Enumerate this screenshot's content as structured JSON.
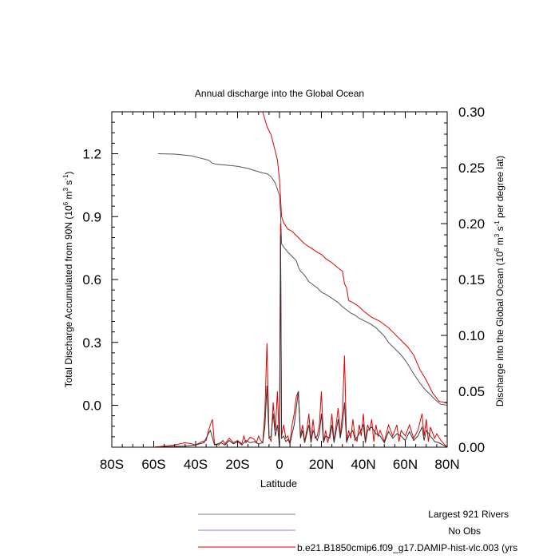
{
  "chart_data": {
    "type": "line",
    "title": "Annual discharge into the Global Ocean",
    "xlabel": "Latitude",
    "ylabel_left": {
      "main": "Total Discharge Accumulated from 90N (10",
      "sup1": "6",
      "mid1": " m",
      "sup2": "3",
      "mid2": " s",
      "sup3": "-1",
      "end": ")"
    },
    "ylabel_right": {
      "main": "Discharge into the Global Ocean (10",
      "sup1": "6",
      "mid1": " m",
      "sup2": "3",
      "mid2": " s",
      "sup3": "-1",
      "end": " per degree lat)"
    },
    "xlim": [
      -80,
      80
    ],
    "ylim_left": [
      -0.2,
      1.4
    ],
    "ylim_right": [
      0.0,
      0.3
    ],
    "x_ticks": [
      {
        "value": -80,
        "label": "80S"
      },
      {
        "value": -60,
        "label": "60S"
      },
      {
        "value": -40,
        "label": "40S"
      },
      {
        "value": -20,
        "label": "20S"
      },
      {
        "value": 0,
        "label": "0"
      },
      {
        "value": 20,
        "label": "20N"
      },
      {
        "value": 40,
        "label": "40N"
      },
      {
        "value": 60,
        "label": "60N"
      },
      {
        "value": 80,
        "label": "80N"
      }
    ],
    "y_ticks_left": [
      {
        "value": 0.0,
        "label": "0.0"
      },
      {
        "value": 0.3,
        "label": "0.3"
      },
      {
        "value": 0.6,
        "label": "0.6"
      },
      {
        "value": 0.9,
        "label": "0.9"
      },
      {
        "value": 1.2,
        "label": "1.2"
      }
    ],
    "y_ticks_right": [
      {
        "value": 0.0,
        "label": "0.00"
      },
      {
        "value": 0.05,
        "label": "0.05"
      },
      {
        "value": 0.1,
        "label": "0.10"
      },
      {
        "value": 0.15,
        "label": "0.15"
      },
      {
        "value": 0.2,
        "label": "0.20"
      },
      {
        "value": 0.25,
        "label": "0.25"
      },
      {
        "value": 0.3,
        "label": "0.30"
      }
    ],
    "legend": [
      {
        "label": "Largest 921 Rivers",
        "color": "#808080"
      },
      {
        "label": "No Obs",
        "color": "#7f7fff"
      },
      {
        "label": "b.e21.B1850cmip6.f09_g17.DAMIP-hist-vlc.003 (yrs",
        "color": "#e00000"
      }
    ],
    "series": [
      {
        "axis": "left",
        "color": "#555555",
        "points": [
          [
            -58,
            1.2
          ],
          [
            -50,
            1.198
          ],
          [
            -42,
            1.19
          ],
          [
            -38,
            1.18
          ],
          [
            -34,
            1.17
          ],
          [
            -32,
            1.155
          ],
          [
            -30,
            1.15
          ],
          [
            -25,
            1.145
          ],
          [
            -20,
            1.14
          ],
          [
            -15,
            1.13
          ],
          [
            -12,
            1.12
          ],
          [
            -8,
            1.108
          ],
          [
            -6,
            1.105
          ],
          [
            -4,
            1.09
          ],
          [
            -2,
            1.06
          ],
          [
            -1,
            1.03
          ],
          [
            0,
            1.0
          ],
          [
            0.5,
            0.92
          ],
          [
            1,
            0.77
          ],
          [
            2,
            0.755
          ],
          [
            4,
            0.73
          ],
          [
            6,
            0.71
          ],
          [
            8,
            0.69
          ],
          [
            9,
            0.66
          ],
          [
            10,
            0.64
          ],
          [
            12,
            0.62
          ],
          [
            14,
            0.59
          ],
          [
            16,
            0.575
          ],
          [
            18,
            0.56
          ],
          [
            20,
            0.54
          ],
          [
            22,
            0.53
          ],
          [
            25,
            0.51
          ],
          [
            28,
            0.49
          ],
          [
            30,
            0.47
          ],
          [
            32,
            0.455
          ],
          [
            34,
            0.44
          ],
          [
            36,
            0.43
          ],
          [
            38,
            0.415
          ],
          [
            40,
            0.405
          ],
          [
            43,
            0.39
          ],
          [
            46,
            0.37
          ],
          [
            48,
            0.35
          ],
          [
            50,
            0.33
          ],
          [
            52,
            0.3
          ],
          [
            55,
            0.27
          ],
          [
            58,
            0.24
          ],
          [
            61,
            0.2
          ],
          [
            64,
            0.15
          ],
          [
            66,
            0.12
          ],
          [
            69,
            0.08
          ],
          [
            72,
            0.05
          ],
          [
            75,
            0.02
          ],
          [
            77,
            0.005
          ],
          [
            80,
            0.0
          ]
        ]
      },
      {
        "axis": "left",
        "color": "#e00000",
        "points": [
          [
            -8,
            1.4
          ],
          [
            -6,
            1.33
          ],
          [
            -4,
            1.29
          ],
          [
            -2,
            1.21
          ],
          [
            -1,
            1.17
          ],
          [
            0,
            1.08
          ],
          [
            1,
            0.9
          ],
          [
            2,
            0.87
          ],
          [
            4,
            0.84
          ],
          [
            6,
            0.83
          ],
          [
            8,
            0.81
          ],
          [
            10,
            0.79
          ],
          [
            12,
            0.77
          ],
          [
            15,
            0.75
          ],
          [
            18,
            0.73
          ],
          [
            20,
            0.72
          ],
          [
            22,
            0.7
          ],
          [
            25,
            0.68
          ],
          [
            28,
            0.655
          ],
          [
            30,
            0.64
          ],
          [
            31,
            0.58
          ],
          [
            32,
            0.56
          ],
          [
            33,
            0.5
          ],
          [
            35,
            0.49
          ],
          [
            38,
            0.47
          ],
          [
            40,
            0.45
          ],
          [
            44,
            0.42
          ],
          [
            48,
            0.4
          ],
          [
            52,
            0.37
          ],
          [
            55,
            0.34
          ],
          [
            58,
            0.31
          ],
          [
            61,
            0.28
          ],
          [
            64,
            0.24
          ],
          [
            67,
            0.17
          ],
          [
            70,
            0.12
          ],
          [
            73,
            0.06
          ],
          [
            76,
            0.02
          ],
          [
            78,
            0.015
          ],
          [
            80,
            0.01
          ]
        ]
      },
      {
        "axis": "right",
        "color": "#e00000",
        "points": [
          [
            -78,
            0.0
          ],
          [
            -60,
            0.0
          ],
          [
            -55,
            0.001
          ],
          [
            -50,
            0.002
          ],
          [
            -45,
            0.004
          ],
          [
            -42,
            0.003
          ],
          [
            -40,
            0.002
          ],
          [
            -37,
            0.005
          ],
          [
            -35,
            0.006
          ],
          [
            -34,
            0.014
          ],
          [
            -33,
            0.02
          ],
          [
            -32,
            0.025
          ],
          [
            -31,
            0.003
          ],
          [
            -29,
            0.002
          ],
          [
            -27,
            0.006
          ],
          [
            -26,
            0.003
          ],
          [
            -24,
            0.008
          ],
          [
            -22,
            0.004
          ],
          [
            -20,
            0.006
          ],
          [
            -18,
            0.003
          ],
          [
            -17,
            0.01
          ],
          [
            -16,
            0.004
          ],
          [
            -14,
            0.009
          ],
          [
            -12,
            0.007
          ],
          [
            -11,
            0.004
          ],
          [
            -10,
            0.01
          ],
          [
            -9,
            0.006
          ],
          [
            -8,
            0.004
          ],
          [
            -7,
            0.03
          ],
          [
            -6,
            0.093
          ],
          [
            -5,
            0.01
          ],
          [
            -4,
            0.005
          ],
          [
            -3,
            0.04
          ],
          [
            -2,
            0.015
          ],
          [
            -1,
            0.05
          ],
          [
            0,
            0.0
          ],
          [
            0.5,
            0.2
          ],
          [
            1,
            0.01
          ],
          [
            2,
            0.02
          ],
          [
            3,
            0.008
          ],
          [
            4,
            0.01
          ],
          [
            5,
            0.004
          ],
          [
            6,
            0.02
          ],
          [
            7,
            0.03
          ],
          [
            8,
            0.045
          ],
          [
            9,
            0.05
          ],
          [
            10,
            0.01
          ],
          [
            11,
            0.02
          ],
          [
            12,
            0.005
          ],
          [
            13,
            0.015
          ],
          [
            14,
            0.03
          ],
          [
            15,
            0.005
          ],
          [
            16,
            0.025
          ],
          [
            17,
            0.008
          ],
          [
            18,
            0.01
          ],
          [
            19,
            0.02
          ],
          [
            20,
            0.05
          ],
          [
            21,
            0.005
          ],
          [
            22,
            0.015
          ],
          [
            23,
            0.004
          ],
          [
            24,
            0.012
          ],
          [
            25,
            0.03
          ],
          [
            26,
            0.005
          ],
          [
            27,
            0.02
          ],
          [
            28,
            0.035
          ],
          [
            29,
            0.01
          ],
          [
            30,
            0.03
          ],
          [
            31,
            0.082
          ],
          [
            32,
            0.005
          ],
          [
            33,
            0.015
          ],
          [
            34,
            0.008
          ],
          [
            35,
            0.025
          ],
          [
            36,
            0.01
          ],
          [
            37,
            0.005
          ],
          [
            38,
            0.02
          ],
          [
            39,
            0.01
          ],
          [
            40,
            0.03
          ],
          [
            41,
            0.005
          ],
          [
            42,
            0.02
          ],
          [
            43,
            0.015
          ],
          [
            44,
            0.025
          ],
          [
            45,
            0.005
          ],
          [
            46,
            0.02
          ],
          [
            47,
            0.01
          ],
          [
            48,
            0.015
          ],
          [
            50,
            0.005
          ],
          [
            52,
            0.02
          ],
          [
            54,
            0.01
          ],
          [
            56,
            0.02
          ],
          [
            57,
            0.005
          ],
          [
            58,
            0.015
          ],
          [
            60,
            0.01
          ],
          [
            62,
            0.02
          ],
          [
            64,
            0.008
          ],
          [
            66,
            0.015
          ],
          [
            68,
            0.03
          ],
          [
            69,
            0.01
          ],
          [
            70,
            0.025
          ],
          [
            71,
            0.005
          ],
          [
            72,
            0.018
          ],
          [
            74,
            0.008
          ],
          [
            75,
            0.012
          ],
          [
            77,
            0.006
          ],
          [
            80,
            0.0
          ]
        ]
      },
      {
        "axis": "right",
        "color": "#333333",
        "points": [
          [
            -60,
            0.0
          ],
          [
            -45,
            0.001
          ],
          [
            -40,
            0.002
          ],
          [
            -36,
            0.004
          ],
          [
            -34,
            0.012
          ],
          [
            -33,
            0.015
          ],
          [
            -31,
            0.002
          ],
          [
            -28,
            0.004
          ],
          [
            -26,
            0.002
          ],
          [
            -24,
            0.006
          ],
          [
            -22,
            0.003
          ],
          [
            -20,
            0.005
          ],
          [
            -18,
            0.002
          ],
          [
            -16,
            0.006
          ],
          [
            -14,
            0.004
          ],
          [
            -12,
            0.005
          ],
          [
            -10,
            0.003
          ],
          [
            -8,
            0.004
          ],
          [
            -7,
            0.018
          ],
          [
            -6,
            0.055
          ],
          [
            -5,
            0.008
          ],
          [
            -4,
            0.01
          ],
          [
            -3,
            0.03
          ],
          [
            -2,
            0.01
          ],
          [
            -1,
            0.02
          ],
          [
            0,
            0.0
          ],
          [
            0.5,
            0.19
          ],
          [
            1,
            0.008
          ],
          [
            2,
            0.01
          ],
          [
            3,
            0.005
          ],
          [
            4,
            0.007
          ],
          [
            5,
            0.003
          ],
          [
            6,
            0.012
          ],
          [
            7,
            0.02
          ],
          [
            8,
            0.035
          ],
          [
            9,
            0.05
          ],
          [
            10,
            0.008
          ],
          [
            11,
            0.015
          ],
          [
            12,
            0.004
          ],
          [
            14,
            0.02
          ],
          [
            15,
            0.004
          ],
          [
            16,
            0.015
          ],
          [
            18,
            0.006
          ],
          [
            19,
            0.012
          ],
          [
            20,
            0.03
          ],
          [
            21,
            0.004
          ],
          [
            22,
            0.01
          ],
          [
            24,
            0.008
          ],
          [
            25,
            0.02
          ],
          [
            26,
            0.004
          ],
          [
            28,
            0.025
          ],
          [
            29,
            0.008
          ],
          [
            30,
            0.02
          ],
          [
            31,
            0.04
          ],
          [
            32,
            0.004
          ],
          [
            33,
            0.01
          ],
          [
            35,
            0.015
          ],
          [
            36,
            0.006
          ],
          [
            38,
            0.012
          ],
          [
            40,
            0.02
          ],
          [
            41,
            0.004
          ],
          [
            42,
            0.015
          ],
          [
            44,
            0.018
          ],
          [
            46,
            0.012
          ],
          [
            48,
            0.01
          ],
          [
            50,
            0.004
          ],
          [
            52,
            0.014
          ],
          [
            54,
            0.008
          ],
          [
            56,
            0.012
          ],
          [
            58,
            0.01
          ],
          [
            60,
            0.006
          ],
          [
            62,
            0.014
          ],
          [
            64,
            0.006
          ],
          [
            66,
            0.01
          ],
          [
            68,
            0.018
          ],
          [
            69,
            0.006
          ],
          [
            70,
            0.015
          ],
          [
            72,
            0.01
          ],
          [
            74,
            0.005
          ],
          [
            76,
            0.004
          ],
          [
            80,
            0.0
          ]
        ]
      }
    ]
  }
}
